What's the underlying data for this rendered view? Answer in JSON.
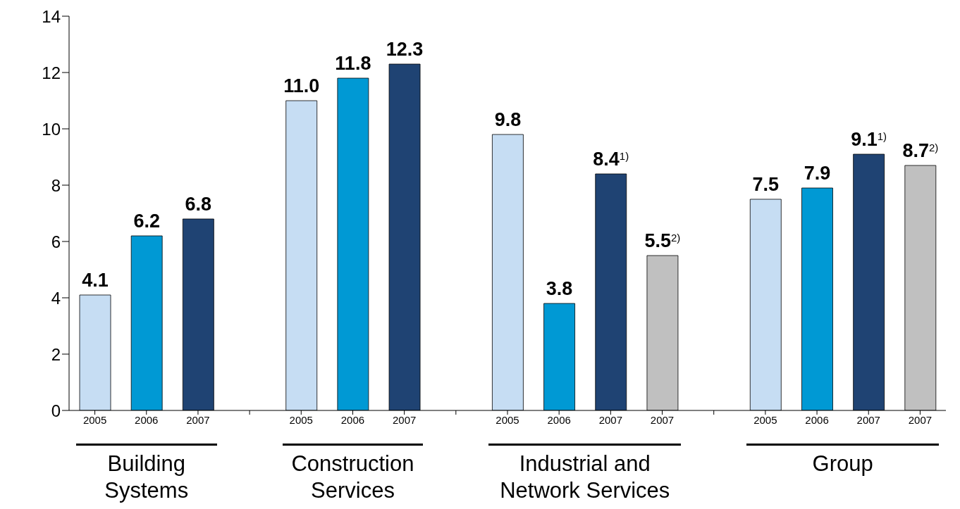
{
  "chart_data": {
    "type": "bar",
    "categories": [
      "2005",
      "2006",
      "2007",
      null,
      "2005",
      "2006",
      "2007",
      null,
      "2005",
      "2006",
      "2007",
      "2007",
      null,
      "2005",
      "2006",
      "2007",
      "2007"
    ],
    "values": [
      4.1,
      6.2,
      6.8,
      null,
      11.0,
      11.8,
      12.3,
      null,
      9.8,
      3.8,
      8.4,
      5.5,
      null,
      7.5,
      7.9,
      9.1,
      8.7
    ],
    "colors": [
      "#c6ddf3",
      "#0099d4",
      "#1f4373",
      null,
      "#c6ddf3",
      "#0099d4",
      "#1f4373",
      null,
      "#c6ddf3",
      "#0099d4",
      "#1f4373",
      "#c0c0c0",
      null,
      "#c6ddf3",
      "#0099d4",
      "#1f4373",
      "#c0c0c0"
    ],
    "value_labels": [
      "4.1",
      "6.2",
      "6.8",
      null,
      "11.0",
      "11.8",
      "12.3",
      null,
      "9.8",
      "3.8",
      "8.4$^{1)}$",
      "5.5$^{2)}$",
      null,
      "7.5",
      "7.9",
      "9.1$^{1)}$",
      "8.7$^{2)}$"
    ],
    "annotations": [
      "Building Systems",
      "Construction Services",
      "Industrial and Network Services",
      "Group"
    ],
    "ylim": [
      0,
      14
    ],
    "yticks": [
      0,
      2,
      4,
      6,
      8,
      10,
      12,
      14
    ]
  }
}
